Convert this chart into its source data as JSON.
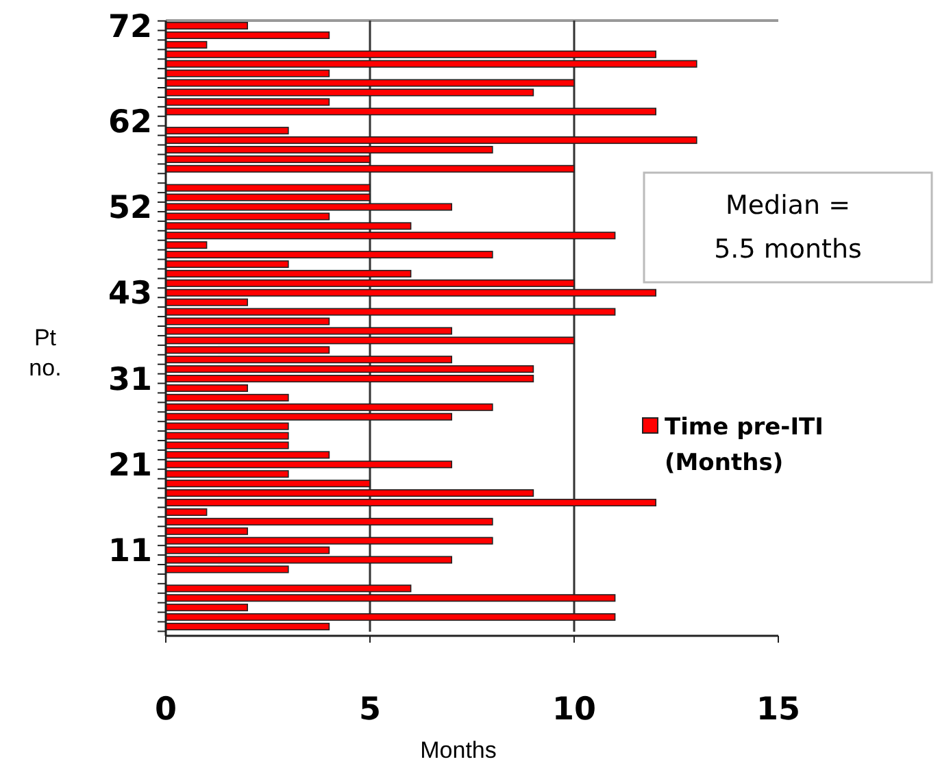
{
  "chart_data": {
    "type": "bar",
    "orientation": "horizontal",
    "categories": [
      "72",
      null,
      null,
      null,
      null,
      null,
      null,
      null,
      null,
      null,
      "62",
      null,
      null,
      null,
      null,
      null,
      null,
      null,
      null,
      "52",
      null,
      null,
      null,
      null,
      null,
      null,
      null,
      null,
      "43",
      null,
      null,
      null,
      null,
      null,
      null,
      null,
      null,
      "31",
      null,
      null,
      null,
      null,
      null,
      null,
      null,
      null,
      "21",
      null,
      null,
      null,
      null,
      null,
      null,
      null,
      null,
      "11",
      null,
      null,
      null,
      null,
      null,
      null,
      null,
      null
    ],
    "series": [
      {
        "name": "Time pre-ITI (Months)",
        "color": "#ff0000",
        "values": [
          2,
          4,
          1,
          12,
          13,
          4,
          10,
          9,
          4,
          12,
          null,
          3,
          13,
          8,
          5,
          10,
          null,
          5,
          5,
          7,
          4,
          6,
          11,
          1,
          8,
          3,
          6,
          10,
          12,
          2,
          11,
          4,
          7,
          10,
          4,
          7,
          9,
          9,
          2,
          3,
          8,
          7,
          3,
          3,
          3,
          4,
          7,
          3,
          5,
          9,
          12,
          1,
          8,
          2,
          8,
          4,
          7,
          3,
          null,
          6,
          11,
          2,
          11,
          4
        ]
      }
    ],
    "xlim": [
      0,
      15
    ],
    "xticks": [
      0,
      5,
      10,
      15
    ],
    "xlabel": "Months",
    "ylabel": "Pt no.",
    "grid": "x",
    "legend": "right",
    "annotations": [
      "Median = 5.5 months"
    ]
  }
}
